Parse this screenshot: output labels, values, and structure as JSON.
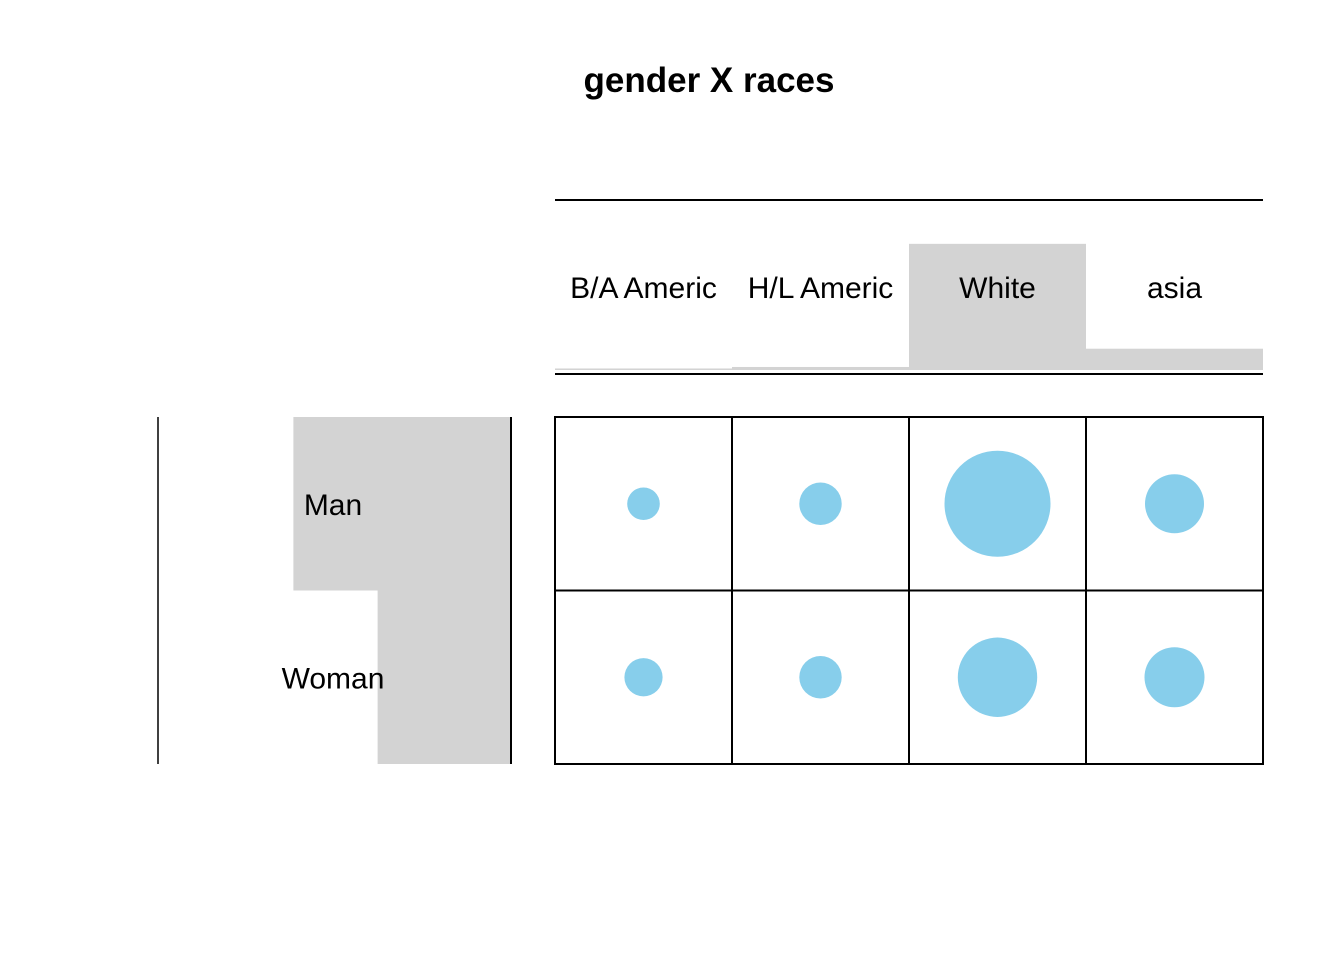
{
  "chart_data": {
    "type": "balloon",
    "title": "gender X races",
    "row_categories": [
      "Man",
      "Woman"
    ],
    "col_categories": [
      "B/A Americ",
      "H/L Americ",
      "White",
      "asia"
    ],
    "row_marginal_share": [
      0.62,
      0.38
    ],
    "col_marginal_share": [
      0.01,
      0.02,
      0.83,
      0.14
    ],
    "relative_values": [
      [
        0.095,
        0.16,
        1.0,
        0.31
      ],
      [
        0.13,
        0.16,
        0.56,
        0.32
      ]
    ],
    "grid": true,
    "legend": "none",
    "colors": {
      "point": "#87CEEB",
      "marginal_bar": "#D3D3D3",
      "line": "#000000",
      "text": "#000000"
    }
  }
}
